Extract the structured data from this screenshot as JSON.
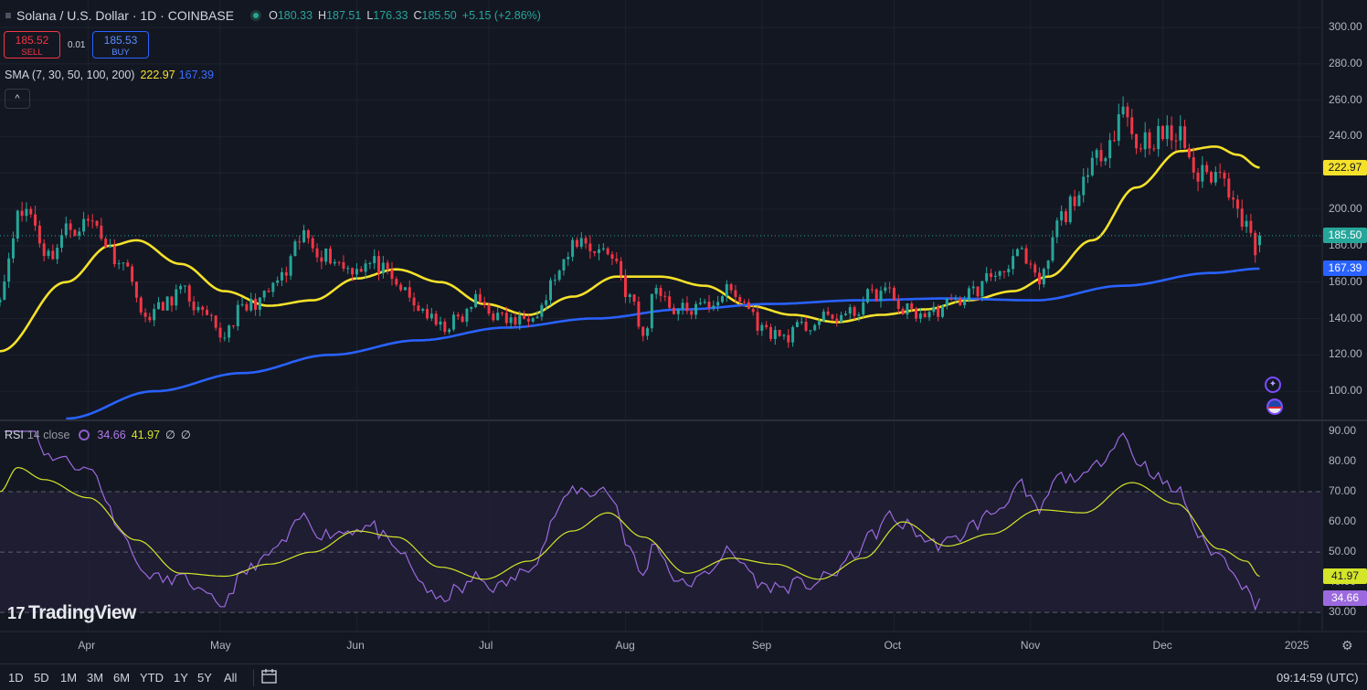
{
  "header": {
    "menu_icon": "≡",
    "title": "Solana / U.S. Dollar · 1D · COINBASE",
    "ohlc": [
      {
        "k": "O",
        "v": "180.33"
      },
      {
        "k": "H",
        "v": "187.51"
      },
      {
        "k": "L",
        "v": "176.33"
      },
      {
        "k": "C",
        "v": "185.50"
      }
    ],
    "change": "+5.15 (+2.86%)"
  },
  "trade": {
    "sell_price": "185.52",
    "sell_label": "SELL",
    "spread": "0.01",
    "buy_price": "185.53",
    "buy_label": "BUY"
  },
  "sma": {
    "label": "SMA (7, 30, 50, 100, 200)",
    "v1": "222.97",
    "v2": "167.39"
  },
  "collapse_icon": "^",
  "rsi": {
    "label": "RSI",
    "params": "14 close",
    "v1": "34.66",
    "v2": "41.97",
    "empty1": "∅",
    "empty2": "∅"
  },
  "branding": {
    "logo_mark": "17",
    "name": "TradingView"
  },
  "price_tags": {
    "sma_a": "222.97",
    "last": "185.50",
    "sma_b": "167.39",
    "rsi_ma": "41.97",
    "rsi": "34.66"
  },
  "range_buttons": [
    "1D",
    "5D",
    "1M",
    "3M",
    "6M",
    "YTD",
    "1Y",
    "5Y",
    "All"
  ],
  "clock": "09:14:59 (UTC)",
  "colors": {
    "up": "#26a69a",
    "down": "#f23645",
    "sma_yellow": "#f5e12a",
    "sma_blue": "#2962ff",
    "rsi": "#9c6ade",
    "rsi_ma": "#d4e52a"
  },
  "chart_data": [
    {
      "type": "candlestick",
      "series_name": "Solana / U.S. Dollar",
      "ylim": [
        85,
        305
      ],
      "y_ticks": [
        100,
        120,
        140,
        160,
        180,
        200,
        220,
        240,
        260,
        280,
        300
      ],
      "y_tick_labels": [
        "100.00",
        "120.00",
        "140.00",
        "160.00",
        "180.00",
        "200.00",
        "220.00",
        "240.00",
        "260.00",
        "280.00",
        "300.00"
      ],
      "x_tick_labels": [
        "Apr",
        "May",
        "Jun",
        "Jul",
        "Aug",
        "Sep",
        "Oct",
        "Nov",
        "Dec",
        "2025"
      ],
      "x_range": [
        "2024-03-12",
        "2025-01-06"
      ],
      "close_anchors": [
        [
          "2024-03-12",
          155
        ],
        [
          "2024-03-16",
          195
        ],
        [
          "2024-03-18",
          200
        ],
        [
          "2024-03-23",
          175
        ],
        [
          "2024-03-28",
          190
        ],
        [
          "2024-04-02",
          193
        ],
        [
          "2024-04-07",
          175
        ],
        [
          "2024-04-11",
          165
        ],
        [
          "2024-04-13",
          140
        ],
        [
          "2024-04-17",
          145
        ],
        [
          "2024-04-22",
          155
        ],
        [
          "2024-04-28",
          140
        ],
        [
          "2024-05-01",
          130
        ],
        [
          "2024-05-06",
          145
        ],
        [
          "2024-05-10",
          150
        ],
        [
          "2024-05-15",
          162
        ],
        [
          "2024-05-20",
          185
        ],
        [
          "2024-05-25",
          175
        ],
        [
          "2024-05-30",
          168
        ],
        [
          "2024-06-05",
          170
        ],
        [
          "2024-06-10",
          158
        ],
        [
          "2024-06-15",
          146
        ],
        [
          "2024-06-20",
          135
        ],
        [
          "2024-06-25",
          140
        ],
        [
          "2024-06-28",
          150
        ],
        [
          "2024-07-04",
          140
        ],
        [
          "2024-07-07",
          138
        ],
        [
          "2024-07-12",
          145
        ],
        [
          "2024-07-17",
          165
        ],
        [
          "2024-07-21",
          183
        ],
        [
          "2024-07-26",
          178
        ],
        [
          "2024-07-29",
          175
        ],
        [
          "2024-08-02",
          152
        ],
        [
          "2024-08-05",
          130
        ],
        [
          "2024-08-08",
          158
        ],
        [
          "2024-08-12",
          145
        ],
        [
          "2024-08-17",
          145
        ],
        [
          "2024-08-20",
          148
        ],
        [
          "2024-08-24",
          155
        ],
        [
          "2024-08-27",
          150
        ],
        [
          "2024-09-02",
          133
        ],
        [
          "2024-09-06",
          130
        ],
        [
          "2024-09-10",
          135
        ],
        [
          "2024-09-16",
          140
        ],
        [
          "2024-09-21",
          142
        ],
        [
          "2024-09-26",
          153
        ],
        [
          "2024-09-29",
          155
        ],
        [
          "2024-10-03",
          145
        ],
        [
          "2024-10-08",
          142
        ],
        [
          "2024-10-14",
          148
        ],
        [
          "2024-10-19",
          155
        ],
        [
          "2024-10-24",
          165
        ],
        [
          "2024-10-29",
          175
        ],
        [
          "2024-11-03",
          160
        ],
        [
          "2024-11-08",
          195
        ],
        [
          "2024-11-12",
          210
        ],
        [
          "2024-11-18",
          235
        ],
        [
          "2024-11-22",
          255
        ],
        [
          "2024-11-25",
          237
        ],
        [
          "2024-11-30",
          240
        ],
        [
          "2024-12-05",
          240
        ],
        [
          "2024-12-09",
          218
        ],
        [
          "2024-12-13",
          220
        ],
        [
          "2024-12-17",
          210
        ],
        [
          "2024-12-20",
          190
        ],
        [
          "2024-12-22",
          180
        ],
        [
          "2024-12-23",
          185.5
        ]
      ],
      "last_ohlc": {
        "open": 180.33,
        "high": 187.51,
        "low": 176.33,
        "close": 185.5
      },
      "sma_series": [
        {
          "name": "SMA",
          "color": "#f5e12a",
          "last": 222.97,
          "points": [
            [
              "2024-03-12",
              122
            ],
            [
              "2024-03-27",
              160
            ],
            [
              "2024-04-06",
              180
            ],
            [
              "2024-04-12",
              183
            ],
            [
              "2024-04-22",
              170
            ],
            [
              "2024-05-02",
              155
            ],
            [
              "2024-05-12",
              147
            ],
            [
              "2024-05-22",
              150
            ],
            [
              "2024-06-01",
              162
            ],
            [
              "2024-06-10",
              167
            ],
            [
              "2024-06-20",
              160
            ],
            [
              "2024-06-30",
              148
            ],
            [
              "2024-07-10",
              142
            ],
            [
              "2024-07-20",
              152
            ],
            [
              "2024-07-30",
              163
            ],
            [
              "2024-08-09",
              163
            ],
            [
              "2024-08-19",
              158
            ],
            [
              "2024-08-29",
              147
            ],
            [
              "2024-09-08",
              142
            ],
            [
              "2024-09-18",
              138
            ],
            [
              "2024-09-28",
              142
            ],
            [
              "2024-10-08",
              145
            ],
            [
              "2024-10-18",
              150
            ],
            [
              "2024-10-28",
              155
            ],
            [
              "2024-11-05",
              163
            ],
            [
              "2024-11-15",
              183
            ],
            [
              "2024-11-25",
              212
            ],
            [
              "2024-12-05",
              232
            ],
            [
              "2024-12-13",
              234.5
            ],
            [
              "2024-12-18",
              230
            ],
            [
              "2024-12-23",
              222.97
            ]
          ]
        },
        {
          "name": "SMA",
          "color": "#2962ff",
          "last": 167.39,
          "points": [
            [
              "2024-03-27",
              85
            ],
            [
              "2024-04-16",
              100
            ],
            [
              "2024-05-06",
              110
            ],
            [
              "2024-05-26",
              120
            ],
            [
              "2024-06-15",
              128
            ],
            [
              "2024-07-05",
              135
            ],
            [
              "2024-07-25",
              140
            ],
            [
              "2024-08-14",
              145
            ],
            [
              "2024-09-03",
              148
            ],
            [
              "2024-09-23",
              150
            ],
            [
              "2024-10-13",
              151
            ],
            [
              "2024-11-02",
              150
            ],
            [
              "2024-11-22",
              158
            ],
            [
              "2024-12-12",
              165
            ],
            [
              "2024-12-23",
              167.39
            ]
          ]
        }
      ]
    },
    {
      "type": "line",
      "series_name": "RSI",
      "ylim": [
        24,
        93
      ],
      "y_ticks": [
        30,
        40,
        50,
        60,
        70,
        80,
        90
      ],
      "y_tick_labels": [
        "30.00",
        "40.00",
        "50.00",
        "60.00",
        "70.00",
        "80.00",
        "90.00"
      ],
      "levels": [
        70,
        50,
        30
      ],
      "rsi": {
        "color": "#9c6ade",
        "last": 34.66
      },
      "rsi_ma": {
        "color": "#d4e52a",
        "last": 41.97,
        "points": [
          [
            "2024-03-12",
            70
          ],
          [
            "2024-03-16",
            78
          ],
          [
            "2024-03-22",
            74
          ],
          [
            "2024-04-01",
            68
          ],
          [
            "2024-04-12",
            54
          ],
          [
            "2024-04-22",
            43
          ],
          [
            "2024-05-02",
            42
          ],
          [
            "2024-05-12",
            46
          ],
          [
            "2024-05-22",
            50
          ],
          [
            "2024-06-01",
            57
          ],
          [
            "2024-06-10",
            55
          ],
          [
            "2024-06-20",
            45
          ],
          [
            "2024-06-30",
            41
          ],
          [
            "2024-07-10",
            47
          ],
          [
            "2024-07-20",
            57
          ],
          [
            "2024-07-28",
            63
          ],
          [
            "2024-08-05",
            55
          ],
          [
            "2024-08-15",
            43
          ],
          [
            "2024-08-25",
            48
          ],
          [
            "2024-09-04",
            46
          ],
          [
            "2024-09-14",
            41
          ],
          [
            "2024-09-24",
            48
          ],
          [
            "2024-10-03",
            60
          ],
          [
            "2024-10-13",
            52
          ],
          [
            "2024-10-23",
            56
          ],
          [
            "2024-11-03",
            64
          ],
          [
            "2024-11-13",
            63
          ],
          [
            "2024-11-24",
            73
          ],
          [
            "2024-12-04",
            66
          ],
          [
            "2024-12-14",
            51
          ],
          [
            "2024-12-20",
            47
          ],
          [
            "2024-12-23",
            41.97
          ]
        ]
      }
    }
  ]
}
